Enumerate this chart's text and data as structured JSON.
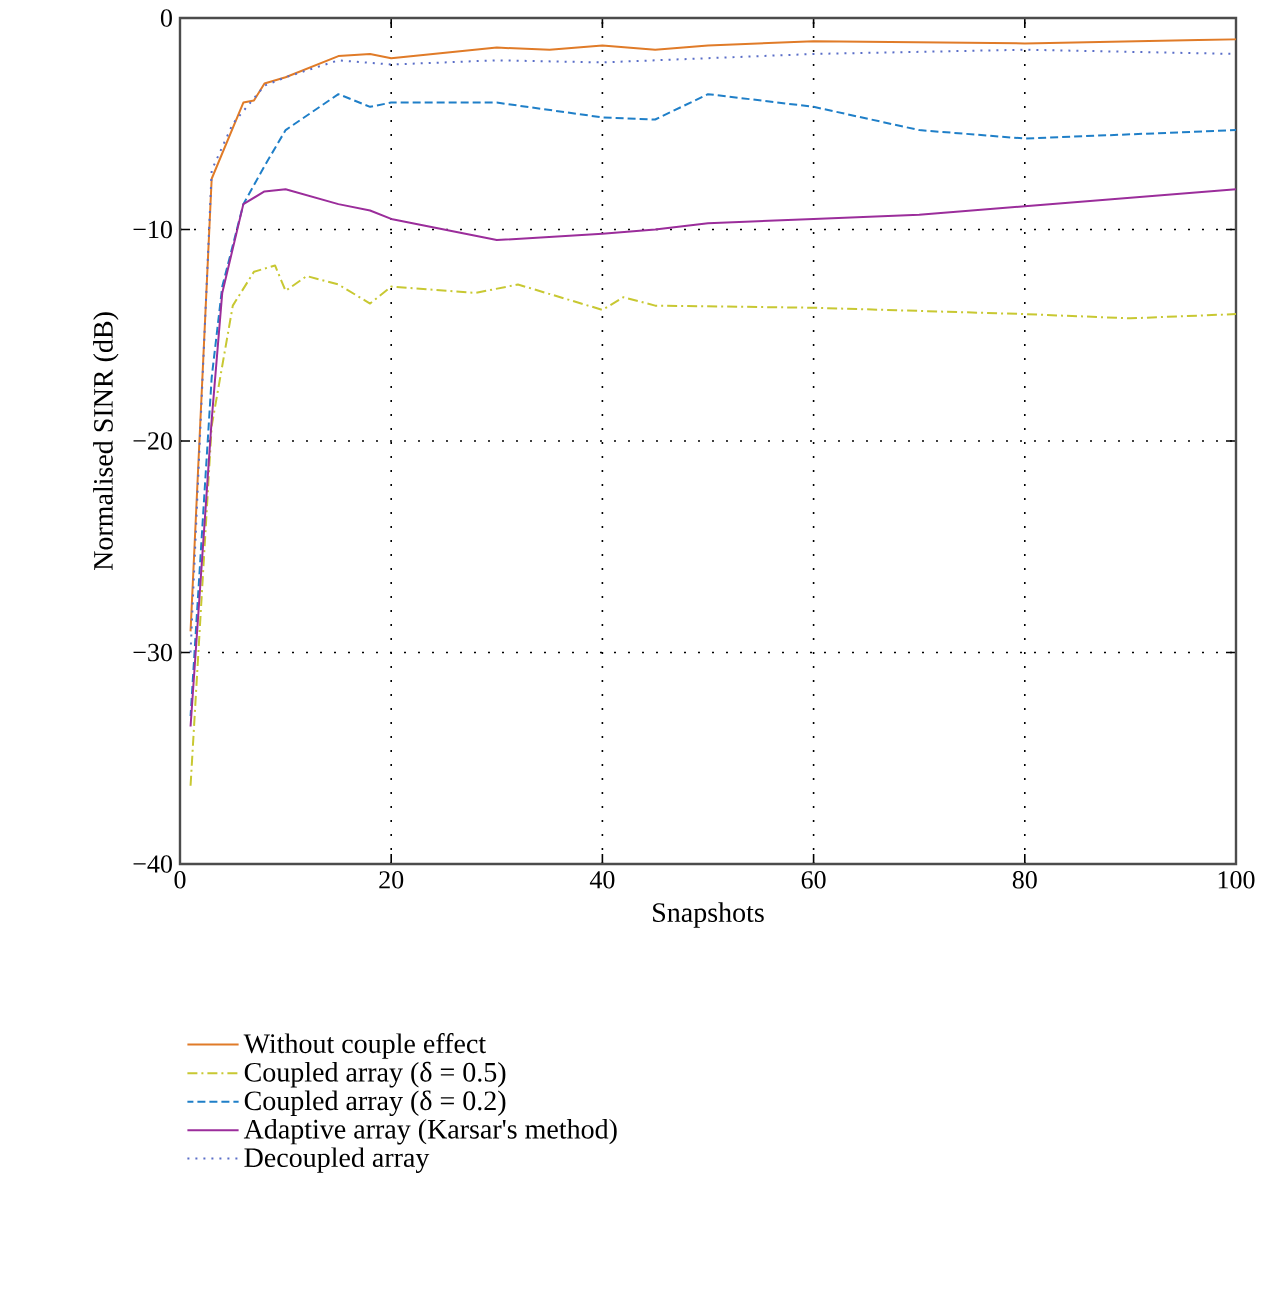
{
  "chart_data": {
    "type": "line",
    "xlabel": "Snapshots",
    "ylabel": "Normalised SINR (dB)",
    "xlim": [
      0,
      100
    ],
    "ylim": [
      -40,
      0
    ],
    "xticks": [
      0,
      20,
      40,
      60,
      80,
      100
    ],
    "yticks": [
      {
        "value": -40,
        "label": "−40"
      },
      {
        "value": -30,
        "label": "−30"
      },
      {
        "value": -20,
        "label": "−20"
      },
      {
        "value": -10,
        "label": "−10"
      },
      0
    ],
    "grid": true,
    "legend": "bottom",
    "marker": "none",
    "series": [
      {
        "name": "Without couple effect",
        "color": "#e07b28",
        "line_style": "solid",
        "x": [
          1,
          3,
          6,
          7,
          8,
          10,
          15,
          18,
          20,
          30,
          35,
          40,
          45,
          50,
          60,
          80,
          100
        ],
        "values": [
          -29,
          -7.6,
          -4,
          -3.9,
          -3.1,
          -2.8,
          -1.8,
          -1.7,
          -1.9,
          -1.4,
          -1.5,
          -1.3,
          -1.5,
          -1.3,
          -1.1,
          -1.2,
          -1.0
        ]
      },
      {
        "name": "Coupled array (δ = 0.5)",
        "color": "#c8c832",
        "line_style": "dashdot",
        "x": [
          1,
          3,
          5,
          7,
          9,
          10,
          12,
          15,
          18,
          20,
          28,
          32,
          40,
          42,
          45,
          60,
          80,
          90,
          100
        ],
        "values": [
          -36.3,
          -19.3,
          -13.6,
          -12.0,
          -11.7,
          -12.9,
          -12.2,
          -12.6,
          -13.5,
          -12.7,
          -13.0,
          -12.6,
          -13.8,
          -13.2,
          -13.6,
          -13.7,
          -14.0,
          -14.2,
          -14.0
        ]
      },
      {
        "name": "Coupled array (δ = 0.2)",
        "color": "#1f7fc8",
        "line_style": "dashed",
        "x": [
          1,
          3,
          4,
          6,
          8,
          10,
          15,
          18,
          20,
          30,
          40,
          45,
          50,
          60,
          70,
          80,
          100
        ],
        "values": [
          -33,
          -17,
          -12.7,
          -8.8,
          -7.0,
          -5.3,
          -3.6,
          -4.2,
          -4.0,
          -4.0,
          -4.7,
          -4.8,
          -3.6,
          -4.2,
          -5.3,
          -5.7,
          -5.3
        ]
      },
      {
        "name": "Adaptive array (Karsar's method)",
        "color": "#9b2d9b",
        "line_style": "solid",
        "x": [
          1,
          3,
          4,
          6,
          8,
          10,
          15,
          18,
          20,
          30,
          40,
          45,
          50,
          60,
          70,
          80,
          100
        ],
        "values": [
          -33.5,
          -19,
          -13,
          -8.8,
          -8.2,
          -8.1,
          -8.8,
          -9.1,
          -9.5,
          -10.5,
          -10.2,
          -10.0,
          -9.7,
          -9.5,
          -9.3,
          -8.9,
          -8.1
        ]
      },
      {
        "name": "Decoupled array",
        "color": "#5a6ec8",
        "line_style": "dotted",
        "x": [
          1,
          3,
          5,
          8,
          10,
          15,
          20,
          30,
          40,
          50,
          60,
          70,
          80,
          90,
          100
        ],
        "values": [
          -30,
          -7.2,
          -5,
          -3.2,
          -2.8,
          -2.0,
          -2.2,
          -2.0,
          -2.1,
          -1.9,
          -1.7,
          -1.6,
          -1.5,
          -1.6,
          -1.7
        ]
      }
    ]
  }
}
